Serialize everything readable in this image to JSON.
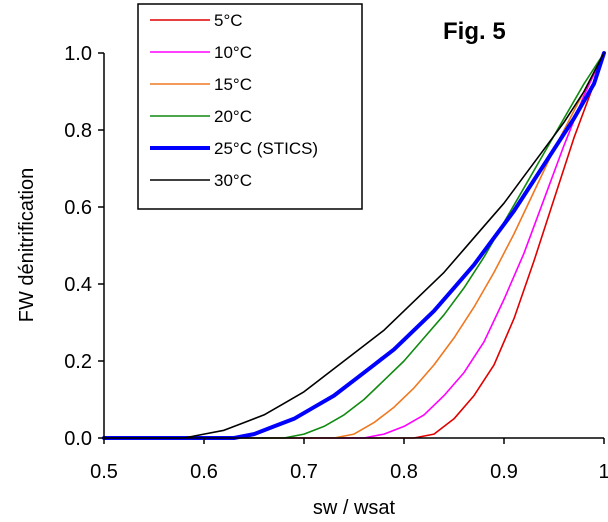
{
  "chart_data": {
    "type": "line",
    "title": "Fig. 5",
    "xlabel": "sw / wsat",
    "ylabel": "FW dénitrification",
    "xlim": [
      0.5,
      1.0
    ],
    "ylim": [
      0.0,
      1.0
    ],
    "x_ticks": [
      "0.5",
      "0.6",
      "0.7",
      "0.8",
      "0.9",
      "1"
    ],
    "y_ticks": [
      "0.0",
      "0.2",
      "0.4",
      "0.6",
      "0.8",
      "1.0"
    ],
    "grid": false,
    "legend_position": "top-left",
    "series": [
      {
        "name": "5°C",
        "color": "#e00000",
        "width": 1.6,
        "points": [
          [
            0.5,
            0
          ],
          [
            0.81,
            0
          ],
          [
            0.83,
            0.01
          ],
          [
            0.85,
            0.05
          ],
          [
            0.87,
            0.11
          ],
          [
            0.89,
            0.19
          ],
          [
            0.91,
            0.31
          ],
          [
            0.93,
            0.46
          ],
          [
            0.95,
            0.62
          ],
          [
            0.97,
            0.78
          ],
          [
            0.99,
            0.92
          ],
          [
            1.0,
            1.0
          ]
        ]
      },
      {
        "name": "10°C",
        "color": "#ff00ff",
        "width": 1.6,
        "points": [
          [
            0.5,
            0
          ],
          [
            0.76,
            0
          ],
          [
            0.78,
            0.01
          ],
          [
            0.8,
            0.03
          ],
          [
            0.82,
            0.06
          ],
          [
            0.84,
            0.11
          ],
          [
            0.86,
            0.17
          ],
          [
            0.88,
            0.25
          ],
          [
            0.9,
            0.36
          ],
          [
            0.92,
            0.48
          ],
          [
            0.94,
            0.62
          ],
          [
            0.96,
            0.76
          ],
          [
            0.98,
            0.89
          ],
          [
            1.0,
            1.0
          ]
        ]
      },
      {
        "name": "15°C",
        "color": "#f07820",
        "width": 1.6,
        "points": [
          [
            0.5,
            0
          ],
          [
            0.73,
            0
          ],
          [
            0.75,
            0.01
          ],
          [
            0.77,
            0.04
          ],
          [
            0.79,
            0.08
          ],
          [
            0.81,
            0.13
          ],
          [
            0.83,
            0.19
          ],
          [
            0.85,
            0.26
          ],
          [
            0.87,
            0.34
          ],
          [
            0.89,
            0.43
          ],
          [
            0.91,
            0.53
          ],
          [
            0.93,
            0.64
          ],
          [
            0.95,
            0.75
          ],
          [
            0.97,
            0.85
          ],
          [
            0.99,
            0.95
          ],
          [
            1.0,
            1.0
          ]
        ]
      },
      {
        "name": "20°C",
        "color": "#108a10",
        "width": 1.6,
        "points": [
          [
            0.5,
            0
          ],
          [
            0.68,
            0
          ],
          [
            0.7,
            0.01
          ],
          [
            0.72,
            0.03
          ],
          [
            0.74,
            0.06
          ],
          [
            0.76,
            0.1
          ],
          [
            0.78,
            0.15
          ],
          [
            0.8,
            0.2
          ],
          [
            0.82,
            0.26
          ],
          [
            0.84,
            0.32
          ],
          [
            0.86,
            0.39
          ],
          [
            0.88,
            0.47
          ],
          [
            0.9,
            0.56
          ],
          [
            0.92,
            0.65
          ],
          [
            0.94,
            0.74
          ],
          [
            0.96,
            0.83
          ],
          [
            0.98,
            0.92
          ],
          [
            1.0,
            1.0
          ]
        ]
      },
      {
        "name": "25°C (STICS)",
        "color": "#0000ff",
        "width": 4,
        "points": [
          [
            0.5,
            0
          ],
          [
            0.63,
            0
          ],
          [
            0.65,
            0.01
          ],
          [
            0.67,
            0.03
          ],
          [
            0.69,
            0.05
          ],
          [
            0.71,
            0.08
          ],
          [
            0.73,
            0.11
          ],
          [
            0.75,
            0.15
          ],
          [
            0.77,
            0.19
          ],
          [
            0.79,
            0.23
          ],
          [
            0.81,
            0.28
          ],
          [
            0.83,
            0.33
          ],
          [
            0.85,
            0.39
          ],
          [
            0.87,
            0.45
          ],
          [
            0.89,
            0.52
          ],
          [
            0.91,
            0.59
          ],
          [
            0.93,
            0.67
          ],
          [
            0.95,
            0.75
          ],
          [
            0.97,
            0.83
          ],
          [
            0.99,
            0.92
          ],
          [
            1.0,
            1.0
          ]
        ]
      },
      {
        "name": "30°C",
        "color": "#000000",
        "width": 1.6,
        "points": [
          [
            0.5,
            0
          ],
          [
            0.58,
            0
          ],
          [
            0.6,
            0.01
          ],
          [
            0.62,
            0.02
          ],
          [
            0.64,
            0.04
          ],
          [
            0.66,
            0.06
          ],
          [
            0.68,
            0.09
          ],
          [
            0.7,
            0.12
          ],
          [
            0.72,
            0.16
          ],
          [
            0.74,
            0.2
          ],
          [
            0.76,
            0.24
          ],
          [
            0.78,
            0.28
          ],
          [
            0.8,
            0.33
          ],
          [
            0.82,
            0.38
          ],
          [
            0.84,
            0.43
          ],
          [
            0.86,
            0.49
          ],
          [
            0.88,
            0.55
          ],
          [
            0.9,
            0.61
          ],
          [
            0.92,
            0.68
          ],
          [
            0.94,
            0.75
          ],
          [
            0.96,
            0.82
          ],
          [
            0.98,
            0.9
          ],
          [
            1.0,
            1.0
          ]
        ]
      }
    ]
  }
}
